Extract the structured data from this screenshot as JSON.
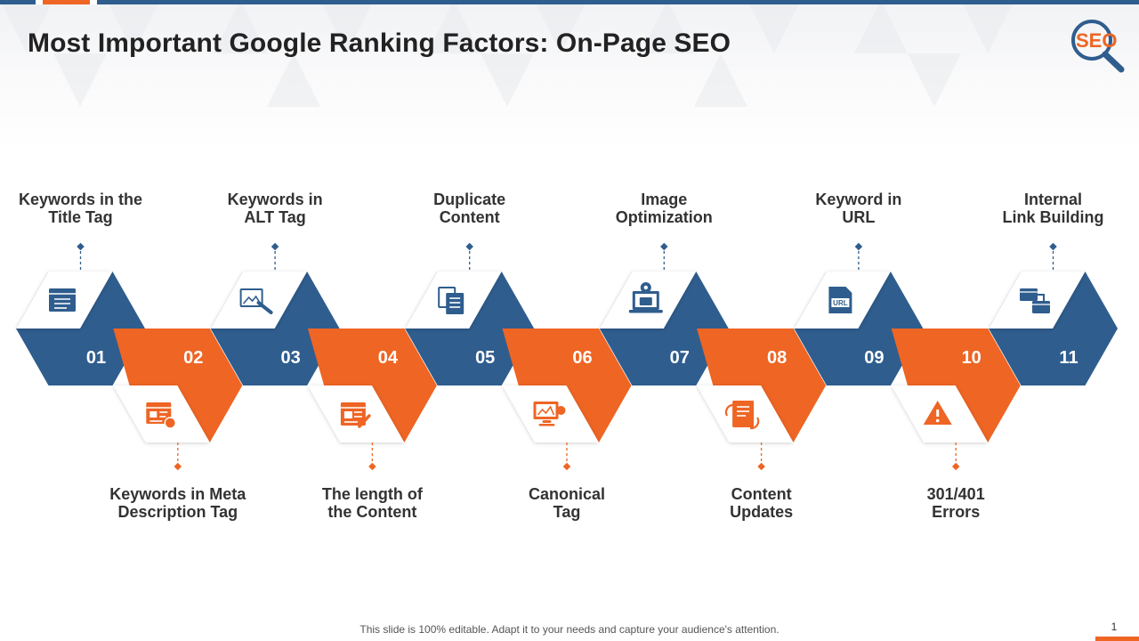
{
  "title": "Most Important Google Ranking Factors: On-Page SEO",
  "logo_text": "SEO",
  "colors": {
    "blue": "#2f5d8e",
    "orange": "#ee6524",
    "white": "#ffffff"
  },
  "factors": [
    {
      "number": "01",
      "line1": "Keywords in the",
      "line2": "Title Tag",
      "color": "blue",
      "icon": "browser-window-icon"
    },
    {
      "number": "02",
      "line1": "Keywords in Meta",
      "line2": "Description Tag",
      "color": "orange",
      "icon": "web-page-edit-icon"
    },
    {
      "number": "03",
      "line1": "Keywords in",
      "line2": "ALT Tag",
      "color": "blue",
      "icon": "image-alt-tag-icon"
    },
    {
      "number": "04",
      "line1": "The length of",
      "line2": "the Content",
      "color": "orange",
      "icon": "content-editor-icon"
    },
    {
      "number": "05",
      "line1": "Duplicate",
      "line2": "Content",
      "color": "blue",
      "icon": "duplicate-documents-icon"
    },
    {
      "number": "06",
      "line1": "Canonical",
      "line2": "Tag",
      "color": "orange",
      "icon": "monitor-link-icon"
    },
    {
      "number": "07",
      "line1": "Image",
      "line2": "Optimization",
      "color": "blue",
      "icon": "laptop-settings-icon"
    },
    {
      "number": "08",
      "line1": "Content",
      "line2": "Updates",
      "color": "orange",
      "icon": "document-refresh-icon"
    },
    {
      "number": "09",
      "line1": "Keyword in",
      "line2": "URL",
      "color": "blue",
      "icon": "url-document-icon"
    },
    {
      "number": "10",
      "line1": "301/401",
      "line2": "Errors",
      "color": "orange",
      "icon": "warning-icon"
    },
    {
      "number": "11",
      "line1": "Internal",
      "line2": "Link Building",
      "color": "blue",
      "icon": "linked-windows-icon"
    }
  ],
  "footer": "This slide is 100% editable. Adapt it to your needs and capture your audience's attention.",
  "page_number": "1"
}
